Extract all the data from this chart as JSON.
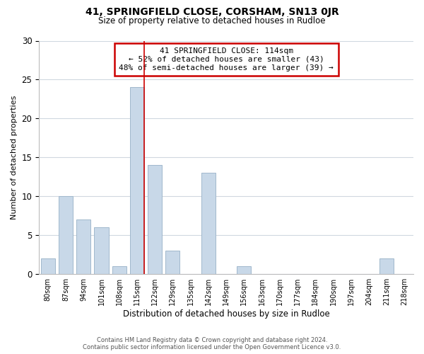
{
  "title_line1": "41, SPRINGFIELD CLOSE, CORSHAM, SN13 0JR",
  "title_line2": "Size of property relative to detached houses in Rudloe",
  "xlabel": "Distribution of detached houses by size in Rudloe",
  "ylabel": "Number of detached properties",
  "footer_line1": "Contains HM Land Registry data © Crown copyright and database right 2024.",
  "footer_line2": "Contains public sector information licensed under the Open Government Licence v3.0.",
  "bin_labels": [
    "80sqm",
    "87sqm",
    "94sqm",
    "101sqm",
    "108sqm",
    "115sqm",
    "122sqm",
    "129sqm",
    "135sqm",
    "142sqm",
    "149sqm",
    "156sqm",
    "163sqm",
    "170sqm",
    "177sqm",
    "184sqm",
    "190sqm",
    "197sqm",
    "204sqm",
    "211sqm",
    "218sqm"
  ],
  "bar_values": [
    2,
    10,
    7,
    6,
    1,
    24,
    14,
    3,
    0,
    13,
    0,
    1,
    0,
    0,
    0,
    0,
    0,
    0,
    0,
    2,
    0
  ],
  "bar_color": "#c8d8e8",
  "bar_edge_color": "#a0b8cc",
  "highlight_bar_index": 5,
  "highlight_color": "#cc0000",
  "annotation_title": "41 SPRINGFIELD CLOSE: 114sqm",
  "annotation_line2": "← 52% of detached houses are smaller (43)",
  "annotation_line3": "48% of semi-detached houses are larger (39) →",
  "annotation_box_color": "#ffffff",
  "annotation_box_edge_color": "#cc0000",
  "ylim": [
    0,
    30
  ],
  "yticks": [
    0,
    5,
    10,
    15,
    20,
    25,
    30
  ],
  "background_color": "#ffffff",
  "grid_color": "#d0d8e0"
}
